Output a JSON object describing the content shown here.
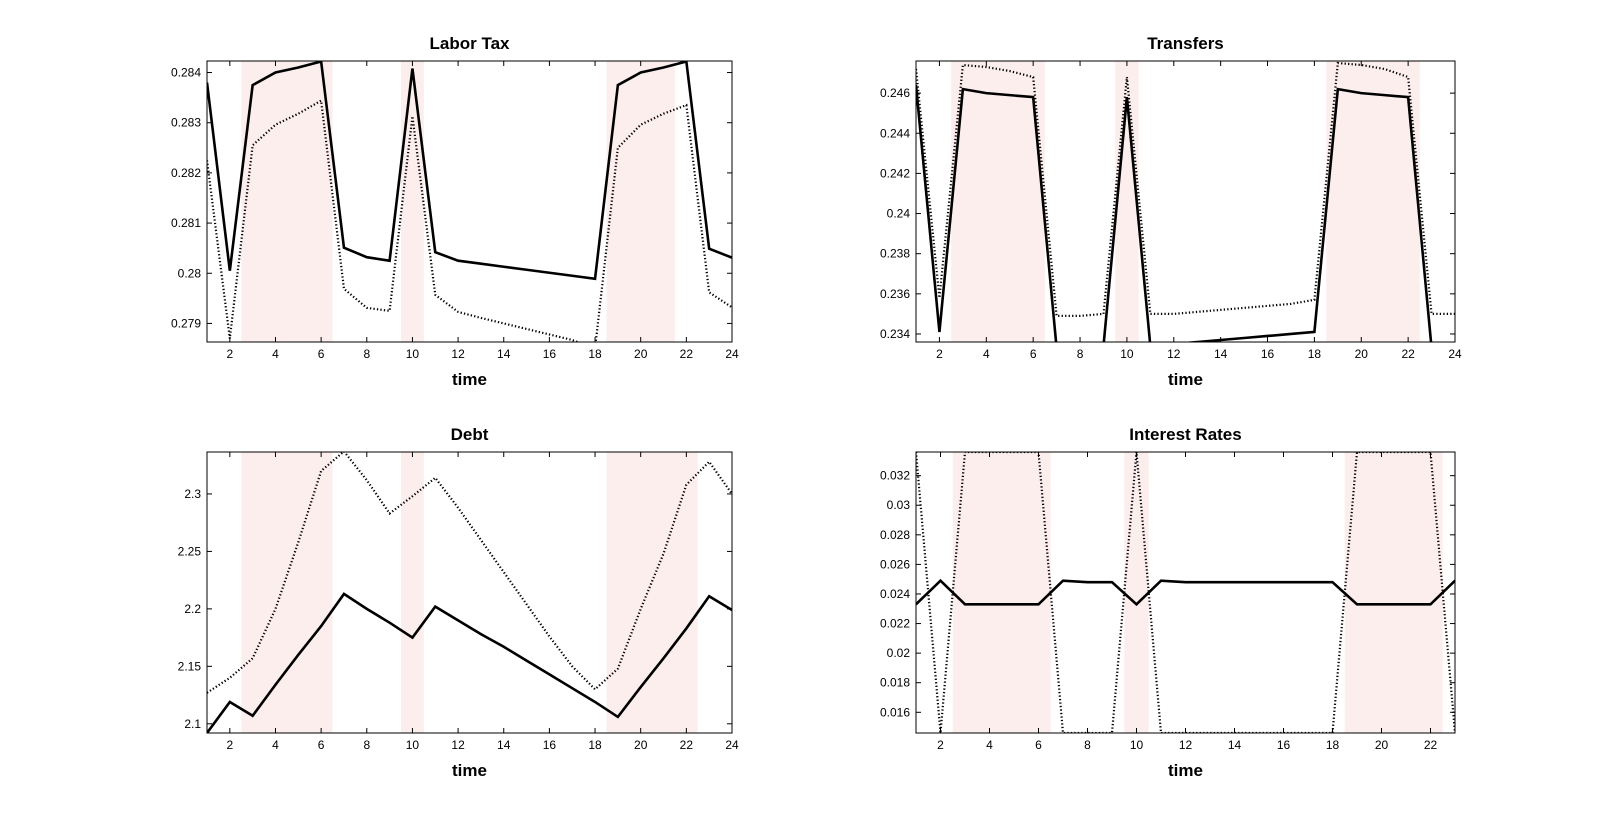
{
  "figure": {
    "shade_color": "#fdeeee",
    "line_color": "#000000",
    "background": "#ffffff"
  },
  "chart_data": [
    {
      "type": "line",
      "title": "Labor Tax",
      "xlabel": "time",
      "ylabel": "",
      "xlim": [
        1,
        24
      ],
      "ylim": [
        0.27863,
        0.28423
      ],
      "xticks": [
        2,
        4,
        6,
        8,
        10,
        12,
        14,
        16,
        18,
        20,
        22,
        24
      ],
      "yticks": [
        0.279,
        0.28,
        0.281,
        0.282,
        0.283,
        0.284
      ],
      "ytick_labels": [
        "0.279",
        "0.28",
        "0.281",
        "0.282",
        "0.283",
        "0.284"
      ],
      "shaded_regions": [
        [
          2.5,
          6.5
        ],
        [
          9.5,
          10.5
        ],
        [
          18.5,
          21.5
        ]
      ],
      "grid": false,
      "x": [
        1,
        2,
        3,
        4,
        5,
        6,
        7,
        8,
        9,
        10,
        11,
        12,
        13,
        14,
        15,
        16,
        17,
        18,
        19,
        20,
        21,
        22,
        23,
        24
      ],
      "series": [
        {
          "style": "solid",
          "values": [
            0.2838,
            0.28005,
            0.28375,
            0.284,
            0.2841,
            0.28422,
            0.28051,
            0.28032,
            0.28025,
            0.28408,
            0.28042,
            0.28025,
            0.28019,
            0.28013,
            0.28007,
            0.28001,
            0.27995,
            0.27989,
            0.28375,
            0.284,
            0.2841,
            0.28422,
            0.28049,
            0.28031
          ]
        },
        {
          "style": "dotted",
          "values": [
            0.28225,
            0.2787,
            0.28255,
            0.28296,
            0.28318,
            0.28344,
            0.27969,
            0.27931,
            0.27925,
            0.28313,
            0.27957,
            0.27923,
            0.27911,
            0.279,
            0.27889,
            0.27878,
            0.27867,
            0.2785,
            0.2825,
            0.28296,
            0.28318,
            0.28335,
            0.27962,
            0.27932
          ]
        }
      ]
    },
    {
      "type": "line",
      "title": "Transfers",
      "xlabel": "time",
      "ylabel": "",
      "xlim": [
        1,
        24
      ],
      "ylim": [
        0.2336,
        0.2476
      ],
      "xticks": [
        2,
        4,
        6,
        8,
        10,
        12,
        14,
        16,
        18,
        20,
        22,
        24
      ],
      "yticks": [
        0.234,
        0.236,
        0.238,
        0.24,
        0.242,
        0.244,
        0.246
      ],
      "ytick_labels": [
        "0.234",
        "0.236",
        "0.238",
        "0.24",
        "0.242",
        "0.244",
        "0.246"
      ],
      "shaded_regions": [
        [
          2.5,
          6.5
        ],
        [
          9.5,
          10.5
        ],
        [
          18.5,
          22.5
        ]
      ],
      "grid": false,
      "x": [
        1,
        2,
        3,
        4,
        5,
        6,
        7,
        8,
        9,
        10,
        11,
        12,
        13,
        14,
        15,
        16,
        17,
        18,
        19,
        20,
        21,
        22,
        23,
        24
      ],
      "series": [
        {
          "style": "solid",
          "values": [
            0.2464,
            0.2341,
            0.2462,
            0.246,
            0.2459,
            0.2458,
            0.2333,
            0.2333,
            0.2334,
            0.2458,
            0.2334,
            0.2335,
            0.2336,
            0.2337,
            0.2338,
            0.2339,
            0.234,
            0.2341,
            0.2462,
            0.246,
            0.2459,
            0.2458,
            0.2333,
            0.2333
          ]
        },
        {
          "style": "dotted",
          "values": [
            0.2472,
            0.2358,
            0.2474,
            0.2473,
            0.2471,
            0.2468,
            0.2349,
            0.2349,
            0.235,
            0.2468,
            0.235,
            0.235,
            0.2351,
            0.2352,
            0.2353,
            0.2354,
            0.2355,
            0.2357,
            0.2475,
            0.2474,
            0.2472,
            0.2468,
            0.235,
            0.235
          ]
        }
      ]
    },
    {
      "type": "line",
      "title": "Debt",
      "xlabel": "time",
      "ylabel": "",
      "xlim": [
        1,
        24
      ],
      "ylim": [
        2.092,
        2.3365
      ],
      "xticks": [
        2,
        4,
        6,
        8,
        10,
        12,
        14,
        16,
        18,
        20,
        22,
        24
      ],
      "yticks": [
        2.1,
        2.15,
        2.2,
        2.25,
        2.3
      ],
      "ytick_labels": [
        "2.1",
        "2.15",
        "2.2",
        "2.25",
        "2.3"
      ],
      "shaded_regions": [
        [
          2.5,
          6.5
        ],
        [
          9.5,
          10.5
        ],
        [
          18.5,
          22.5
        ]
      ],
      "grid": false,
      "x": [
        1,
        2,
        3,
        4,
        5,
        6,
        7,
        8,
        9,
        10,
        11,
        12,
        13,
        14,
        15,
        16,
        17,
        18,
        19,
        20,
        21,
        22,
        23,
        24
      ],
      "series": [
        {
          "style": "solid",
          "values": [
            2.092,
            2.119,
            2.107,
            2.134,
            2.16,
            2.185,
            2.213,
            2.2,
            2.188,
            2.175,
            2.202,
            2.19,
            2.178,
            2.167,
            2.155,
            2.143,
            2.131,
            2.119,
            2.106,
            2.132,
            2.157,
            2.183,
            2.211,
            2.199
          ]
        },
        {
          "style": "dotted",
          "values": [
            2.127,
            2.14,
            2.157,
            2.2,
            2.258,
            2.32,
            2.337,
            2.312,
            2.283,
            2.298,
            2.314,
            2.288,
            2.26,
            2.232,
            2.204,
            2.176,
            2.15,
            2.13,
            2.148,
            2.2,
            2.248,
            2.308,
            2.328,
            2.3
          ]
        }
      ]
    },
    {
      "type": "line",
      "title": "Interest Rates",
      "xlabel": "time",
      "ylabel": "",
      "xlim": [
        1,
        23
      ],
      "ylim": [
        0.0146,
        0.0336
      ],
      "xticks": [
        2,
        4,
        6,
        8,
        10,
        12,
        14,
        16,
        18,
        20,
        22
      ],
      "yticks": [
        0.016,
        0.018,
        0.02,
        0.022,
        0.024,
        0.026,
        0.028,
        0.03,
        0.032
      ],
      "ytick_labels": [
        "0.016",
        "0.018",
        "0.02",
        "0.022",
        "0.024",
        "0.026",
        "0.028",
        "0.03",
        "0.032"
      ],
      "shaded_regions": [
        [
          2.5,
          6.5
        ],
        [
          9.5,
          10.5
        ],
        [
          18.5,
          22.5
        ]
      ],
      "grid": false,
      "x": [
        1,
        2,
        3,
        4,
        5,
        6,
        7,
        8,
        9,
        10,
        11,
        12,
        13,
        14,
        15,
        16,
        17,
        18,
        19,
        20,
        21,
        22,
        23
      ],
      "series": [
        {
          "style": "solid",
          "values": [
            0.0233,
            0.0249,
            0.0233,
            0.0233,
            0.0233,
            0.0233,
            0.0249,
            0.0248,
            0.0248,
            0.0233,
            0.0249,
            0.0248,
            0.0248,
            0.0248,
            0.0248,
            0.0248,
            0.0248,
            0.0248,
            0.0233,
            0.0233,
            0.0233,
            0.0233,
            0.0249
          ]
        },
        {
          "style": "dotted",
          "values": [
            0.0336,
            0.0146,
            0.0336,
            0.0336,
            0.0336,
            0.0336,
            0.0146,
            0.0146,
            0.0146,
            0.0336,
            0.0146,
            0.0146,
            0.0146,
            0.0146,
            0.0146,
            0.0146,
            0.0146,
            0.0146,
            0.0336,
            0.0336,
            0.0336,
            0.0336,
            0.0146
          ]
        }
      ]
    }
  ]
}
